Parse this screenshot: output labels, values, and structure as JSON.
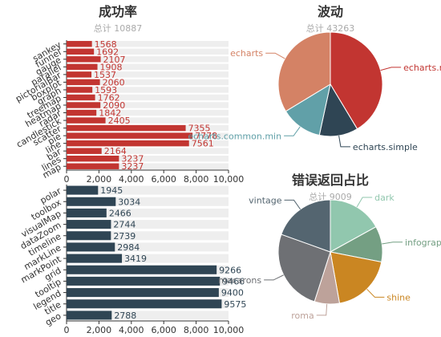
{
  "chart_data": [
    {
      "type": "bar",
      "title": "成功率",
      "subtitle": "总计 10887",
      "orientation": "horizontal",
      "color": "#c23531",
      "xlim": [
        0,
        10000
      ],
      "xticks": [
        "0",
        "2,000",
        "4,000",
        "6,000",
        "8,000",
        "10,000"
      ],
      "categories": [
        "sankey",
        "funnel",
        "gauge",
        "parallel",
        "pictorialBar",
        "boxplot",
        "graph",
        "treemap",
        "heatmap",
        "radar",
        "candlestick",
        "scatter",
        "pie",
        "line",
        "bar",
        "lines",
        "map"
      ],
      "values": [
        1568,
        1692,
        2107,
        1908,
        1537,
        2060,
        1593,
        1762,
        2090,
        1842,
        2405,
        7355,
        7778,
        7561,
        2164,
        3237,
        3237
      ],
      "visible_labels": [
        "sankey",
        "funnel",
        "gauge",
        "parallel",
        "pictorialBar",
        "boxplot",
        "graph",
        "treemap",
        "heatmap",
        "radar",
        "candlestick",
        "scatter",
        "pie",
        "line",
        "bar",
        "lines",
        "map"
      ]
    },
    {
      "type": "bar",
      "orientation": "horizontal",
      "color": "#2f4554",
      "xlim": [
        0,
        10000
      ],
      "xticks": [
        "0",
        "2,000",
        "4,000",
        "6,000",
        "8,000",
        "10,000"
      ],
      "categories": [
        "polar",
        "toolbox",
        "visualMap",
        "dataZoom",
        "timeline",
        "markLine",
        "markPoint",
        "grid",
        "tooltip",
        "legend",
        "title",
        "geo"
      ],
      "values": [
        1945,
        3034,
        2466,
        2744,
        2739,
        2984,
        3419,
        9266,
        9466,
        9400,
        9575,
        2788
      ]
    },
    {
      "type": "pie",
      "title": "波动",
      "subtitle": "总计 43263",
      "slices": [
        {
          "name": "echarts.min",
          "value": 17900,
          "color": "#c23531",
          "label": "echarts.m"
        },
        {
          "name": "echarts.simple",
          "value": 5200,
          "color": "#2f4554",
          "label": "echarts.simple"
        },
        {
          "name": "echarts.common.min",
          "value": 5600,
          "color": "#61a0a8",
          "label": "echarts.common.min"
        },
        {
          "name": "echarts",
          "value": 14563,
          "color": "#d48265",
          "label": "echarts"
        }
      ]
    },
    {
      "type": "pie",
      "title": "错误返回占比",
      "subtitle": "总计 9009",
      "slices": [
        {
          "name": "dark",
          "value": 1530,
          "color": "#91c7ae",
          "label": "dark"
        },
        {
          "name": "infographic",
          "value": 1000,
          "color": "#749f83",
          "label": "infograp"
        },
        {
          "name": "shine",
          "value": 1720,
          "color": "#ca8622",
          "label": "shine"
        },
        {
          "name": "roma",
          "value": 700,
          "color": "#bda29a",
          "label": "roma"
        },
        {
          "name": "macarons",
          "value": 2300,
          "color": "#6e7074",
          "label": "macarons"
        },
        {
          "name": "vintage",
          "value": 1759,
          "color": "#546570",
          "label": "vintage"
        }
      ]
    }
  ]
}
